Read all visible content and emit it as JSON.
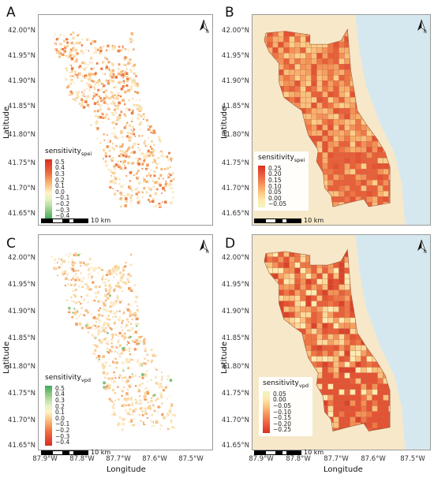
{
  "figure": {
    "y_axis_label": "Latitude",
    "x_axis_label": "Longitude",
    "lat_ticks": [
      "42.00°N",
      "41.95°N",
      "41.90°N",
      "41.85°N",
      "41.80°N",
      "41.75°N",
      "41.70°N",
      "41.65°N"
    ],
    "lon_ticks": [
      "87.9°W",
      "87.8°W",
      "87.7°W",
      "87.6°W",
      "87.5°W"
    ],
    "scale_label": "10 km",
    "north_label": "N",
    "colors": {
      "land_background": "#f7e8c9",
      "lake": "#d6e8ef",
      "orange_high": "#d7301f",
      "pale": "#fff7bc",
      "green_low": "#41ab5d"
    }
  },
  "panels": [
    {
      "letter": "A",
      "legend": {
        "title_main": "sensitivity",
        "title_sub": "spei",
        "labels": [
          "0.5",
          "0.4",
          "0.3",
          "0.2",
          "0.1",
          "0.0",
          "−0.1",
          "−0.2",
          "−0.3",
          "−0.4"
        ],
        "colors": [
          "#d7301f",
          "#e34a33",
          "#ee6a3d",
          "#f59a5a",
          "#fcc78a",
          "#fff2c2",
          "#e4f2c4",
          "#b5dea0",
          "#7cc276",
          "#41ab5d"
        ]
      }
    },
    {
      "letter": "B",
      "legend": {
        "title_main": "sensitivity",
        "title_sub": "spei",
        "labels": [
          "0.25",
          "0.20",
          "0.15",
          "0.10",
          "0.05",
          "0.00",
          "−0.05"
        ],
        "colors": [
          "#d7301f",
          "#e8523a",
          "#f2774b",
          "#f8a263",
          "#fccb86",
          "#fdeab0",
          "#eef5bc"
        ]
      }
    },
    {
      "letter": "C",
      "legend": {
        "title_main": "sensitivity",
        "title_sub": "vpd",
        "labels": [
          "0.5",
          "0.4",
          "0.3",
          "0.2",
          "0.1",
          "0.0",
          "−0.1",
          "−0.2",
          "−0.3",
          "−0.4"
        ],
        "colors": [
          "#41ab5d",
          "#7cc276",
          "#b5dea0",
          "#e4f2c4",
          "#fff2c2",
          "#fcc78a",
          "#f59a5a",
          "#ee6a3d",
          "#e34a33",
          "#d7301f"
        ]
      }
    },
    {
      "letter": "D",
      "legend": {
        "title_main": "sensitivity",
        "title_sub": "vpd",
        "labels": [
          "0.05",
          "0.00",
          "−0.05",
          "−0.10",
          "−0.15",
          "−0.20",
          "−0.25"
        ],
        "colors": [
          "#eef5bc",
          "#fdeab0",
          "#fccb86",
          "#f8a263",
          "#f2774b",
          "#e8523a",
          "#d7301f"
        ]
      }
    }
  ]
}
